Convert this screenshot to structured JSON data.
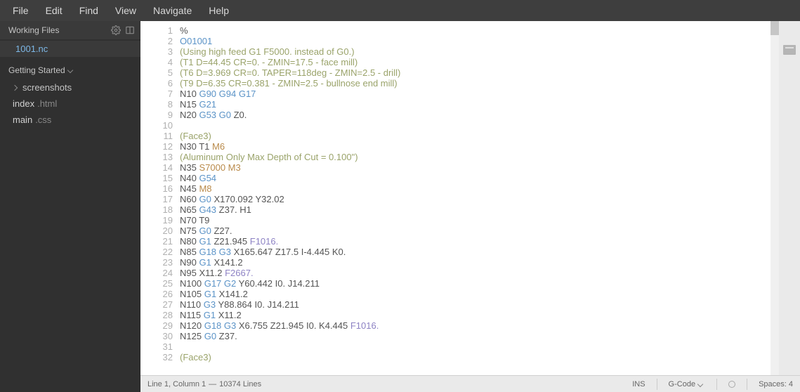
{
  "menubar": [
    "File",
    "Edit",
    "Find",
    "View",
    "Navigate",
    "Help"
  ],
  "sidebar": {
    "working_files_label": "Working Files",
    "working_files": [
      {
        "name": "1001.nc",
        "selected": true
      }
    ],
    "getting_started_label": "Getting Started",
    "tree": [
      {
        "label": "screenshots",
        "kind": "folder"
      },
      {
        "label": "index",
        "ext": ".html",
        "kind": "file"
      },
      {
        "label": "main",
        "ext": ".css",
        "kind": "file"
      }
    ]
  },
  "editor": {
    "first_line": 1,
    "lines": [
      [
        {
          "t": "%",
          "c": "num"
        }
      ],
      [
        {
          "t": "O01001",
          "c": "o"
        }
      ],
      [
        {
          "t": "(Using high feed G1 F5000. instead of G0.)",
          "c": "comment"
        }
      ],
      [
        {
          "t": "(T1 D=44.45 CR=0. - ZMIN=17.5 - face mill)",
          "c": "comment"
        }
      ],
      [
        {
          "t": "(T6 D=3.969 CR=0. TAPER=118deg - ZMIN=2.5 - drill)",
          "c": "comment"
        }
      ],
      [
        {
          "t": "(T9 D=6.35 CR=0.381 - ZMIN=2.5 - bullnose end mill)",
          "c": "comment"
        }
      ],
      [
        {
          "t": "N10 ",
          "c": "addr"
        },
        {
          "t": "G90 G94 G17",
          "c": "gcode"
        }
      ],
      [
        {
          "t": "N15 ",
          "c": "addr"
        },
        {
          "t": "G21",
          "c": "gcode"
        }
      ],
      [
        {
          "t": "N20 ",
          "c": "addr"
        },
        {
          "t": "G53 G0 ",
          "c": "gcode"
        },
        {
          "t": "Z0.",
          "c": "num"
        }
      ],
      [],
      [
        {
          "t": "(Face3)",
          "c": "comment"
        }
      ],
      [
        {
          "t": "N30 ",
          "c": "addr"
        },
        {
          "t": "T1 ",
          "c": "tcode"
        },
        {
          "t": "M6",
          "c": "mcode"
        }
      ],
      [
        {
          "t": "(Aluminum Only Max Depth of Cut = 0.100\")",
          "c": "comment"
        }
      ],
      [
        {
          "t": "N35 ",
          "c": "addr"
        },
        {
          "t": "S7000 ",
          "c": "scode"
        },
        {
          "t": "M3",
          "c": "mcode"
        }
      ],
      [
        {
          "t": "N40 ",
          "c": "addr"
        },
        {
          "t": "G54",
          "c": "gcode"
        }
      ],
      [
        {
          "t": "N45 ",
          "c": "addr"
        },
        {
          "t": "M8",
          "c": "mcode"
        }
      ],
      [
        {
          "t": "N60 ",
          "c": "addr"
        },
        {
          "t": "G0 ",
          "c": "gcode"
        },
        {
          "t": "X170.092 Y32.02",
          "c": "num"
        }
      ],
      [
        {
          "t": "N65 ",
          "c": "addr"
        },
        {
          "t": "G43 ",
          "c": "gcode"
        },
        {
          "t": "Z37. H1",
          "c": "num"
        }
      ],
      [
        {
          "t": "N70 ",
          "c": "addr"
        },
        {
          "t": "T9",
          "c": "tcode"
        }
      ],
      [
        {
          "t": "N75 ",
          "c": "addr"
        },
        {
          "t": "G0 ",
          "c": "gcode"
        },
        {
          "t": "Z27.",
          "c": "num"
        }
      ],
      [
        {
          "t": "N80 ",
          "c": "addr"
        },
        {
          "t": "G1 ",
          "c": "gcode"
        },
        {
          "t": "Z21.945 ",
          "c": "num"
        },
        {
          "t": "F1016.",
          "c": "feed"
        }
      ],
      [
        {
          "t": "N85 ",
          "c": "addr"
        },
        {
          "t": "G18 G3 ",
          "c": "gcode"
        },
        {
          "t": "X165.647 Z17.5 I-4.445 K0.",
          "c": "num"
        }
      ],
      [
        {
          "t": "N90 ",
          "c": "addr"
        },
        {
          "t": "G1 ",
          "c": "gcode"
        },
        {
          "t": "X141.2",
          "c": "num"
        }
      ],
      [
        {
          "t": "N95 ",
          "c": "addr"
        },
        {
          "t": "X11.2 ",
          "c": "num"
        },
        {
          "t": "F2667.",
          "c": "feed"
        }
      ],
      [
        {
          "t": "N100 ",
          "c": "addr"
        },
        {
          "t": "G17 G2 ",
          "c": "gcode"
        },
        {
          "t": "Y60.442 I0. J14.211",
          "c": "num"
        }
      ],
      [
        {
          "t": "N105 ",
          "c": "addr"
        },
        {
          "t": "G1 ",
          "c": "gcode"
        },
        {
          "t": "X141.2",
          "c": "num"
        }
      ],
      [
        {
          "t": "N110 ",
          "c": "addr"
        },
        {
          "t": "G3 ",
          "c": "gcode"
        },
        {
          "t": "Y88.864 I0. J14.211",
          "c": "num"
        }
      ],
      [
        {
          "t": "N115 ",
          "c": "addr"
        },
        {
          "t": "G1 ",
          "c": "gcode"
        },
        {
          "t": "X11.2",
          "c": "num"
        }
      ],
      [
        {
          "t": "N120 ",
          "c": "addr"
        },
        {
          "t": "G18 G3 ",
          "c": "gcode"
        },
        {
          "t": "X6.755 Z21.945 I0. K4.445 ",
          "c": "num"
        },
        {
          "t": "F1016.",
          "c": "feed"
        }
      ],
      [
        {
          "t": "N125 ",
          "c": "addr"
        },
        {
          "t": "G0 ",
          "c": "gcode"
        },
        {
          "t": "Z37.",
          "c": "num"
        }
      ],
      [],
      [
        {
          "t": "(Face3)",
          "c": "comment"
        }
      ]
    ]
  },
  "statusbar": {
    "cursor": "Line 1, Column 1",
    "total": "10374 Lines",
    "ins": "INS",
    "lang": "G-Code",
    "spaces": "Spaces: 4"
  }
}
